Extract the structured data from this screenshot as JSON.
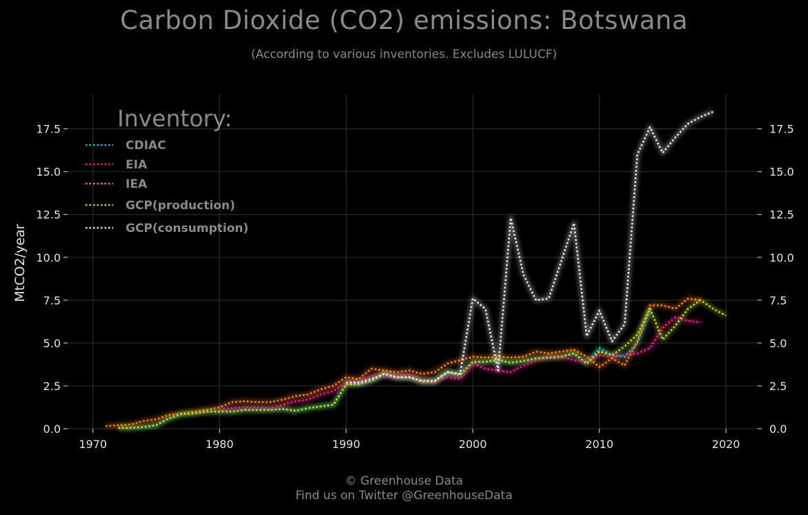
{
  "header": {
    "title": "Carbon Dioxide (CO2) emissions: Botswana",
    "subtitle": "(According to various inventories. Excludes LULUCF)"
  },
  "footer": {
    "line1": "© Greenhouse Data",
    "line2": "Find us on Twitter @GreenhouseData"
  },
  "colors": {
    "background": "#000000",
    "grid": "#2a2a2a",
    "text_muted": "#8a8a8a",
    "text_axis": "#e6e6e6"
  },
  "chart_data": {
    "type": "line",
    "title": "Carbon Dioxide (CO2) emissions: Botswana",
    "subtitle": "(According to various inventories. Excludes LULUCF)",
    "xlabel": "",
    "ylabel": "MtCO2/year",
    "xlim": [
      1968,
      2022.5
    ],
    "ylim": [
      0,
      19.5
    ],
    "xticks": [
      1970,
      1980,
      1990,
      2000,
      2010,
      2020
    ],
    "yticks": [
      0.0,
      2.5,
      5.0,
      7.5,
      10.0,
      12.5,
      15.0,
      17.5
    ],
    "ytick_labels": [
      "0.0",
      "2.5",
      "5.0",
      "7.5",
      "10.0",
      "12.5",
      "15.0",
      "17.5"
    ],
    "grid": true,
    "line_style": "dotted",
    "legend": {
      "title": "Inventory:",
      "position": "top-left"
    },
    "series": [
      {
        "name": "CDIAC",
        "color": "#17becf",
        "x": [
          1972,
          1973,
          1974,
          1975,
          1976,
          1977,
          1978,
          1979,
          1980,
          1981,
          1982,
          1983,
          1984,
          1985,
          1986,
          1987,
          1988,
          1989,
          1990,
          1991,
          1992,
          1993,
          1994,
          1995,
          1996,
          1997,
          1998,
          1999,
          2000,
          2001,
          2002,
          2003,
          2004,
          2005,
          2006,
          2007,
          2008,
          2009,
          2010,
          2011,
          2012,
          2013,
          2014
        ],
        "y": [
          0.05,
          0.05,
          0.1,
          0.2,
          0.6,
          0.85,
          0.9,
          1.0,
          1.0,
          1.0,
          1.1,
          1.1,
          1.1,
          1.15,
          1.05,
          1.2,
          1.3,
          1.4,
          2.6,
          2.6,
          2.8,
          3.2,
          3.0,
          3.0,
          2.75,
          2.75,
          3.3,
          3.15,
          3.9,
          3.9,
          4.0,
          3.85,
          3.95,
          4.1,
          4.15,
          4.2,
          4.4,
          3.8,
          4.7,
          4.3,
          4.2,
          5.0,
          6.9
        ]
      },
      {
        "name": "EIA",
        "color": "#e91e8c",
        "x": [
          1980,
          1981,
          1982,
          1983,
          1984,
          1985,
          1986,
          1987,
          1988,
          1989,
          1990,
          1991,
          1992,
          1993,
          1994,
          1995,
          1996,
          1997,
          1998,
          1999,
          2000,
          2001,
          2002,
          2003,
          2004,
          2005,
          2006,
          2007,
          2008,
          2009,
          2010,
          2011,
          2012,
          2013,
          2014,
          2015,
          2016,
          2017,
          2018
        ],
        "y": [
          1.1,
          1.2,
          1.25,
          1.25,
          1.2,
          1.4,
          1.6,
          1.7,
          2.0,
          2.2,
          2.7,
          2.7,
          3.1,
          3.1,
          3.1,
          3.1,
          2.8,
          2.8,
          3.0,
          2.9,
          3.8,
          3.5,
          3.4,
          3.3,
          3.7,
          4.0,
          4.2,
          4.2,
          4.0,
          3.9,
          4.3,
          4.2,
          4.3,
          4.4,
          4.7,
          5.9,
          6.5,
          6.3,
          6.2
        ]
      },
      {
        "name": "IEA",
        "color": "#ff7f0e",
        "x": [
          1971,
          1972,
          1973,
          1974,
          1975,
          1976,
          1977,
          1978,
          1979,
          1980,
          1981,
          1982,
          1983,
          1984,
          1985,
          1986,
          1987,
          1988,
          1989,
          1990,
          1991,
          1992,
          1993,
          1994,
          1995,
          1996,
          1997,
          1998,
          1999,
          2000,
          2001,
          2002,
          2003,
          2004,
          2005,
          2006,
          2007,
          2008,
          2009,
          2010,
          2011,
          2012,
          2013,
          2014,
          2015,
          2016,
          2017,
          2018
        ],
        "y": [
          0.15,
          0.2,
          0.25,
          0.45,
          0.55,
          0.8,
          0.9,
          1.0,
          1.1,
          1.25,
          1.55,
          1.6,
          1.55,
          1.55,
          1.7,
          1.9,
          2.0,
          2.3,
          2.5,
          3.0,
          2.9,
          3.5,
          3.4,
          3.3,
          3.4,
          3.2,
          3.3,
          3.8,
          4.0,
          4.2,
          4.15,
          4.2,
          4.15,
          4.2,
          4.5,
          4.4,
          4.5,
          4.6,
          4.2,
          3.6,
          4.1,
          3.7,
          5.1,
          7.2,
          7.2,
          7.0,
          7.6,
          7.5
        ]
      },
      {
        "name": "GCP(production)",
        "color": "#bcdb22",
        "x": [
          1972,
          1973,
          1974,
          1975,
          1976,
          1977,
          1978,
          1979,
          1980,
          1981,
          1982,
          1983,
          1984,
          1985,
          1986,
          1987,
          1988,
          1989,
          1990,
          1991,
          1992,
          1993,
          1994,
          1995,
          1996,
          1997,
          1998,
          1999,
          2000,
          2001,
          2002,
          2003,
          2004,
          2005,
          2006,
          2007,
          2008,
          2009,
          2010,
          2011,
          2012,
          2013,
          2014,
          2015,
          2016,
          2017,
          2018,
          2019,
          2020
        ],
        "y": [
          0.05,
          0.05,
          0.1,
          0.2,
          0.6,
          0.85,
          0.9,
          1.0,
          1.0,
          1.0,
          1.1,
          1.1,
          1.1,
          1.15,
          1.05,
          1.2,
          1.3,
          1.4,
          2.6,
          2.6,
          2.8,
          3.2,
          3.0,
          3.0,
          2.75,
          2.75,
          3.3,
          3.15,
          3.9,
          3.9,
          4.0,
          3.85,
          3.95,
          4.1,
          4.15,
          4.2,
          4.4,
          3.8,
          4.5,
          4.3,
          4.8,
          5.5,
          7.0,
          5.2,
          6.0,
          7.0,
          7.5,
          7.0,
          6.6
        ]
      },
      {
        "name": "GCP(consumption)",
        "color": "#e8e8e8",
        "x": [
          1990,
          1991,
          1992,
          1993,
          1994,
          1995,
          1996,
          1997,
          1998,
          1999,
          2000,
          2001,
          2002,
          2003,
          2004,
          2005,
          2006,
          2007,
          2008,
          2009,
          2010,
          2011,
          2012,
          2013,
          2014,
          2015,
          2016,
          2017,
          2018,
          2019
        ],
        "y": [
          2.7,
          2.7,
          2.9,
          3.2,
          3.0,
          3.0,
          2.8,
          2.8,
          3.3,
          3.2,
          7.6,
          7.0,
          3.4,
          12.3,
          9.0,
          7.5,
          7.6,
          9.8,
          12.0,
          5.4,
          6.9,
          5.1,
          6.1,
          16.0,
          17.6,
          16.1,
          17.0,
          17.8,
          18.2,
          18.5
        ]
      }
    ]
  }
}
